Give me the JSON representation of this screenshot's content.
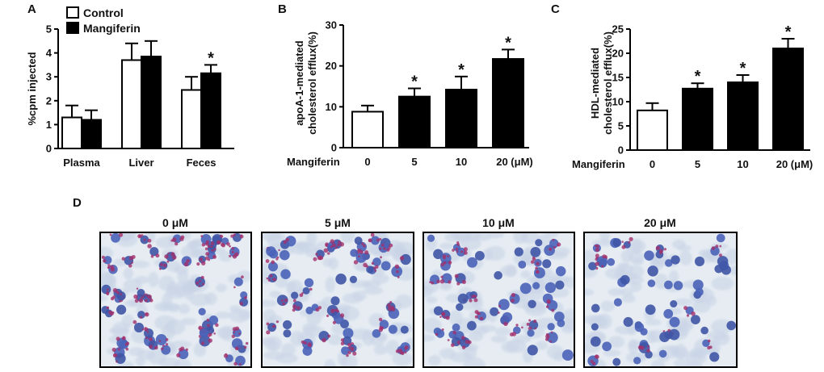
{
  "chart_data": [
    {
      "panel": "A",
      "type": "bar",
      "categories": [
        "Plasma",
        "Liver",
        "Feces"
      ],
      "ylabel": "%cpm injected",
      "ylim": [
        0,
        5
      ],
      "yticks": [
        0,
        1,
        2,
        3,
        4,
        5
      ],
      "legend": {
        "placement": "top-left"
      },
      "series": [
        {
          "name": "Control",
          "color": "#ffffff",
          "values": [
            1.3,
            3.7,
            2.45
          ],
          "errors": [
            0.5,
            0.7,
            0.55
          ]
        },
        {
          "name": "Mangiferin",
          "color": "#000000",
          "values": [
            1.2,
            3.85,
            3.15
          ],
          "errors": [
            0.4,
            0.65,
            0.35
          ]
        }
      ],
      "significance": [
        {
          "series": 1,
          "category": 2,
          "mark": "*"
        }
      ]
    },
    {
      "panel": "B",
      "type": "bar",
      "xlabel": "Mangiferin",
      "categories": [
        "0",
        "5",
        "10",
        "20 (μM)"
      ],
      "ylabel_lines": [
        "apoA-1-mediated",
        "cholesterol efflux(%)"
      ],
      "ylim": [
        0,
        30
      ],
      "yticks": [
        0,
        10,
        20,
        30
      ],
      "values": [
        8.8,
        12.5,
        14.2,
        21.7
      ],
      "errors": [
        1.5,
        2.0,
        3.2,
        2.3
      ],
      "colors": [
        "#ffffff",
        "#000000",
        "#000000",
        "#000000"
      ],
      "significance": [
        1,
        2,
        3
      ]
    },
    {
      "panel": "C",
      "type": "bar",
      "xlabel": "Mangiferin",
      "categories": [
        "0",
        "5",
        "10",
        "20 (μM)"
      ],
      "ylabel_lines": [
        "HDL-mediated",
        "cholesterol efflux(%)"
      ],
      "ylim": [
        0,
        25
      ],
      "yticks": [
        0,
        5,
        10,
        15,
        20,
        25
      ],
      "values": [
        8.2,
        12.7,
        14.0,
        21.0
      ],
      "errors": [
        1.5,
        1.1,
        1.5,
        2.0
      ],
      "colors": [
        "#ffffff",
        "#000000",
        "#000000",
        "#000000"
      ],
      "significance": [
        1,
        2,
        3
      ]
    }
  ],
  "panel_labels": [
    "A",
    "B",
    "C",
    "D"
  ],
  "micrographs": {
    "titles": [
      "0 μM",
      "5 μM",
      "10 μM",
      "20 μM"
    ],
    "stain_density": [
      0.9,
      0.6,
      0.45,
      0.15
    ]
  },
  "significance_mark": "*"
}
